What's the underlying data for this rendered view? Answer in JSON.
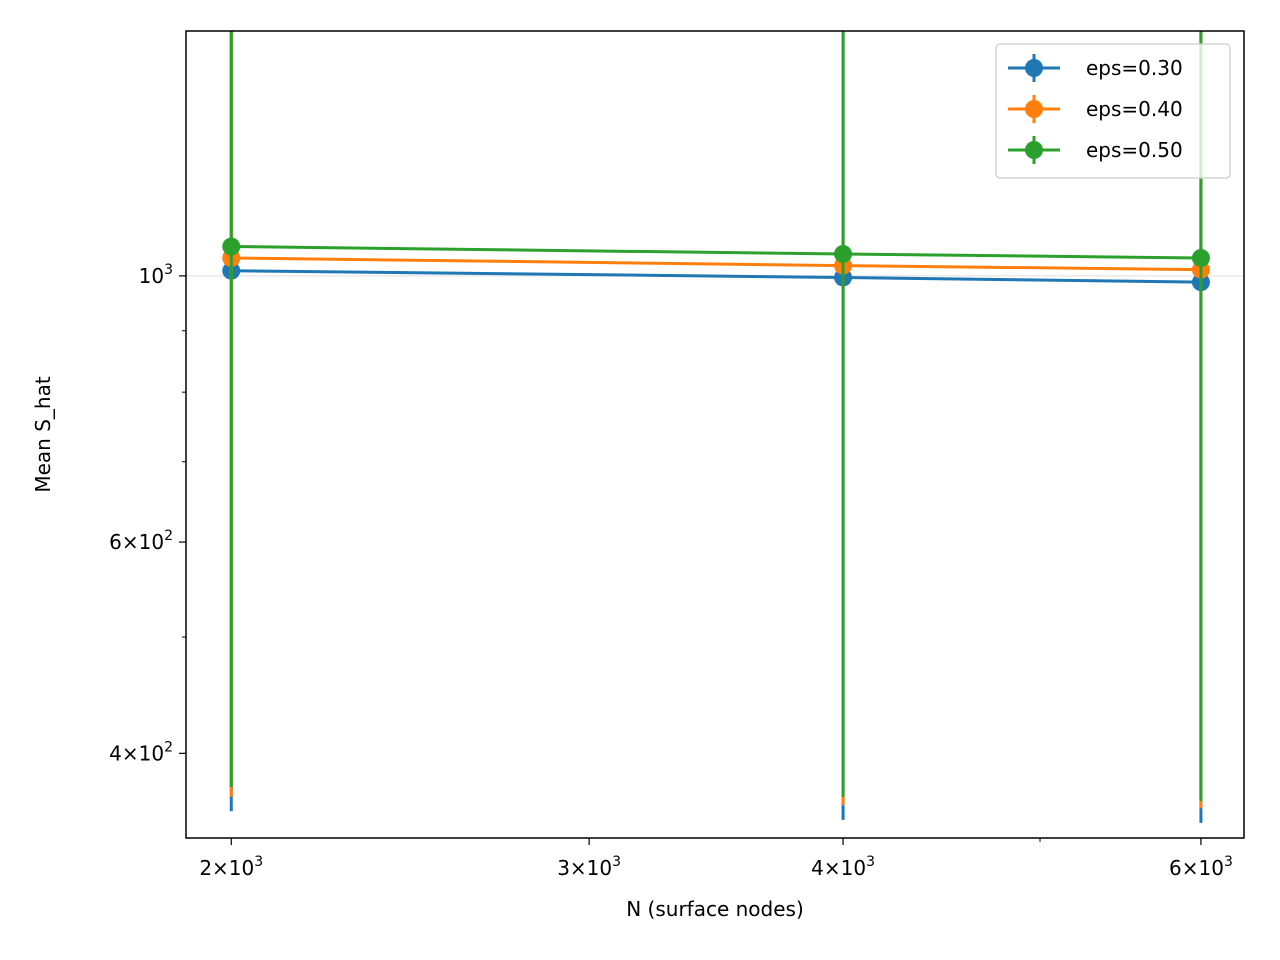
{
  "chart_data": {
    "type": "line",
    "xlabel": "N (surface nodes)",
    "ylabel": "Mean S_hat",
    "xscale": "log",
    "yscale": "log",
    "xlim": [
      1900,
      6300
    ],
    "ylim": [
      340,
      1600
    ],
    "grid": "horizontal major grid line at 10^3",
    "legend_position": "top-right",
    "x": [
      2000,
      4000,
      6000
    ],
    "x_tick_labels": [
      {
        "value": 2000,
        "base": "2×10",
        "exp": "3"
      },
      {
        "value": 3000,
        "base": "3×10",
        "exp": "3"
      },
      {
        "value": 4000,
        "base": "4×10",
        "exp": "3"
      },
      {
        "value": 6000,
        "base": "6×10",
        "exp": "3"
      }
    ],
    "x_minor_ticks": [
      5000
    ],
    "y_tick_labels": [
      {
        "value": 400,
        "base": "4×10",
        "exp": "2"
      },
      {
        "value": 600,
        "base": "6×10",
        "exp": "2"
      },
      {
        "value": 1000,
        "base": "10",
        "exp": "3"
      }
    ],
    "y_minor_ticks": [
      500,
      700,
      800,
      900
    ],
    "series": [
      {
        "name": "eps=0.30",
        "color": "#1f77b4",
        "values": [
          1010,
          997,
          988
        ],
        "err_low": [
          358,
          352,
          350
        ],
        "err_high": [
          1820,
          1780,
          1760
        ]
      },
      {
        "name": "eps=0.40",
        "color": "#ff7f0e",
        "values": [
          1035,
          1020,
          1012
        ],
        "err_low": [
          368,
          362,
          360
        ],
        "err_high": [
          1880,
          1840,
          1820
        ]
      },
      {
        "name": "eps=0.50",
        "color": "#2ca02c",
        "values": [
          1058,
          1043,
          1035
        ],
        "err_low": [
          375,
          368,
          365
        ],
        "err_high": [
          1950,
          1900,
          1880
        ]
      }
    ]
  }
}
